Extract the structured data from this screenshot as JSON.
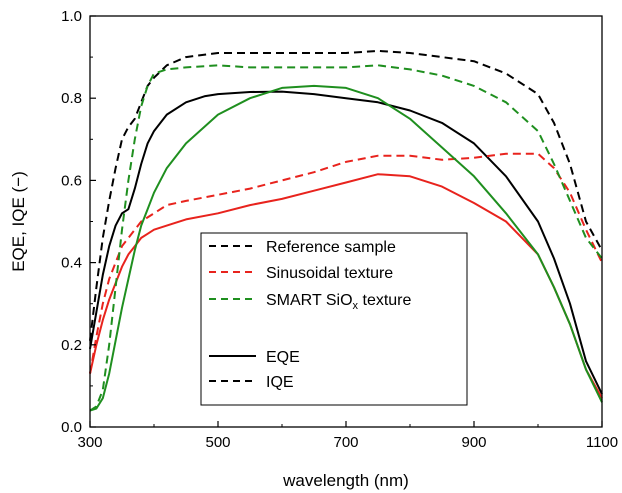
{
  "chart_data": {
    "type": "line",
    "title": "",
    "xlabel": "wavelength (nm)",
    "ylabel": "EQE, IQE (−)",
    "xlim": [
      300,
      1100
    ],
    "ylim": [
      0.0,
      1.0
    ],
    "xticks": [
      300,
      500,
      700,
      900,
      1100
    ],
    "xtick_labels": [
      "300",
      "500",
      "700",
      "900",
      "1100"
    ],
    "yticks": [
      0.0,
      0.2,
      0.4,
      0.6,
      0.8,
      1.0
    ],
    "ytick_labels": [
      "0.0",
      "0.2",
      "0.4",
      "0.6",
      "0.8",
      "1.0"
    ],
    "grid": false,
    "legend_placement": "center-left",
    "legend": {
      "samples": [
        {
          "label": "Reference sample",
          "color": "#000000"
        },
        {
          "label": "Sinusoidal texture",
          "color": "#e8231d"
        },
        {
          "label_main": "SMART SiO",
          "label_sub": "x",
          "label_end": " texture",
          "color": "#1f8f1f"
        }
      ],
      "styles": [
        {
          "label": "EQE",
          "dash": "solid"
        },
        {
          "label": "IQE",
          "dash": "dashed"
        }
      ]
    },
    "series": [
      {
        "sample": "Reference sample",
        "measure": "EQE",
        "color": "#000000",
        "dash": "solid",
        "x": [
          300,
          310,
          320,
          330,
          340,
          350,
          360,
          370,
          380,
          390,
          400,
          420,
          450,
          480,
          500,
          550,
          600,
          650,
          700,
          750,
          800,
          850,
          900,
          950,
          1000,
          1025,
          1050,
          1075,
          1100
        ],
        "y": [
          0.19,
          0.28,
          0.37,
          0.44,
          0.49,
          0.52,
          0.53,
          0.58,
          0.64,
          0.69,
          0.72,
          0.76,
          0.79,
          0.805,
          0.81,
          0.815,
          0.816,
          0.81,
          0.8,
          0.79,
          0.77,
          0.74,
          0.69,
          0.61,
          0.5,
          0.41,
          0.3,
          0.16,
          0.08
        ]
      },
      {
        "sample": "Reference sample",
        "measure": "IQE",
        "color": "#000000",
        "dash": "dashed",
        "x": [
          300,
          310,
          320,
          330,
          340,
          350,
          360,
          370,
          380,
          390,
          400,
          420,
          450,
          500,
          550,
          600,
          650,
          700,
          750,
          800,
          850,
          900,
          950,
          1000,
          1025,
          1050,
          1075,
          1100
        ],
        "y": [
          0.21,
          0.34,
          0.46,
          0.55,
          0.63,
          0.7,
          0.73,
          0.75,
          0.79,
          0.83,
          0.85,
          0.88,
          0.9,
          0.91,
          0.91,
          0.91,
          0.91,
          0.91,
          0.915,
          0.91,
          0.9,
          0.89,
          0.86,
          0.81,
          0.74,
          0.64,
          0.5,
          0.43
        ]
      },
      {
        "sample": "Sinusoidal texture",
        "measure": "EQE",
        "color": "#e8231d",
        "dash": "solid",
        "x": [
          300,
          310,
          320,
          330,
          340,
          350,
          360,
          370,
          380,
          390,
          400,
          420,
          450,
          500,
          550,
          600,
          650,
          700,
          750,
          800,
          850,
          900,
          950,
          1000,
          1025,
          1050,
          1075,
          1100
        ],
        "y": [
          0.13,
          0.2,
          0.26,
          0.31,
          0.35,
          0.39,
          0.42,
          0.44,
          0.46,
          0.47,
          0.48,
          0.49,
          0.505,
          0.52,
          0.54,
          0.555,
          0.575,
          0.595,
          0.615,
          0.61,
          0.585,
          0.545,
          0.5,
          0.42,
          0.34,
          0.25,
          0.14,
          0.07
        ]
      },
      {
        "sample": "Sinusoidal texture",
        "measure": "IQE",
        "color": "#e8231d",
        "dash": "dashed",
        "x": [
          300,
          310,
          320,
          330,
          340,
          350,
          360,
          370,
          380,
          390,
          400,
          420,
          450,
          500,
          550,
          600,
          650,
          700,
          750,
          800,
          850,
          900,
          950,
          1000,
          1025,
          1050,
          1075,
          1100
        ],
        "y": [
          0.13,
          0.22,
          0.3,
          0.36,
          0.4,
          0.44,
          0.46,
          0.48,
          0.5,
          0.51,
          0.52,
          0.54,
          0.55,
          0.565,
          0.58,
          0.6,
          0.62,
          0.645,
          0.66,
          0.66,
          0.65,
          0.655,
          0.665,
          0.665,
          0.63,
          0.57,
          0.48,
          0.4
        ]
      },
      {
        "sample": "SMART SiOx texture",
        "measure": "EQE",
        "color": "#1f8f1f",
        "dash": "solid",
        "x": [
          300,
          310,
          320,
          330,
          340,
          350,
          360,
          370,
          380,
          390,
          400,
          420,
          450,
          500,
          550,
          600,
          650,
          700,
          750,
          800,
          850,
          900,
          950,
          1000,
          1025,
          1050,
          1075,
          1100
        ],
        "y": [
          0.04,
          0.045,
          0.07,
          0.13,
          0.21,
          0.29,
          0.36,
          0.43,
          0.49,
          0.53,
          0.57,
          0.63,
          0.69,
          0.76,
          0.8,
          0.825,
          0.83,
          0.825,
          0.8,
          0.75,
          0.68,
          0.61,
          0.52,
          0.42,
          0.34,
          0.25,
          0.14,
          0.06
        ]
      },
      {
        "sample": "SMART SiOx texture",
        "measure": "IQE",
        "color": "#1f8f1f",
        "dash": "dashed",
        "x": [
          300,
          310,
          320,
          330,
          340,
          350,
          360,
          370,
          380,
          390,
          400,
          420,
          450,
          500,
          550,
          600,
          650,
          700,
          750,
          800,
          850,
          900,
          950,
          1000,
          1025,
          1050,
          1075,
          1100
        ],
        "y": [
          0.04,
          0.05,
          0.09,
          0.2,
          0.34,
          0.48,
          0.6,
          0.7,
          0.78,
          0.83,
          0.86,
          0.87,
          0.875,
          0.88,
          0.875,
          0.875,
          0.875,
          0.875,
          0.88,
          0.87,
          0.855,
          0.83,
          0.79,
          0.72,
          0.64,
          0.55,
          0.46,
          0.41
        ]
      }
    ]
  }
}
